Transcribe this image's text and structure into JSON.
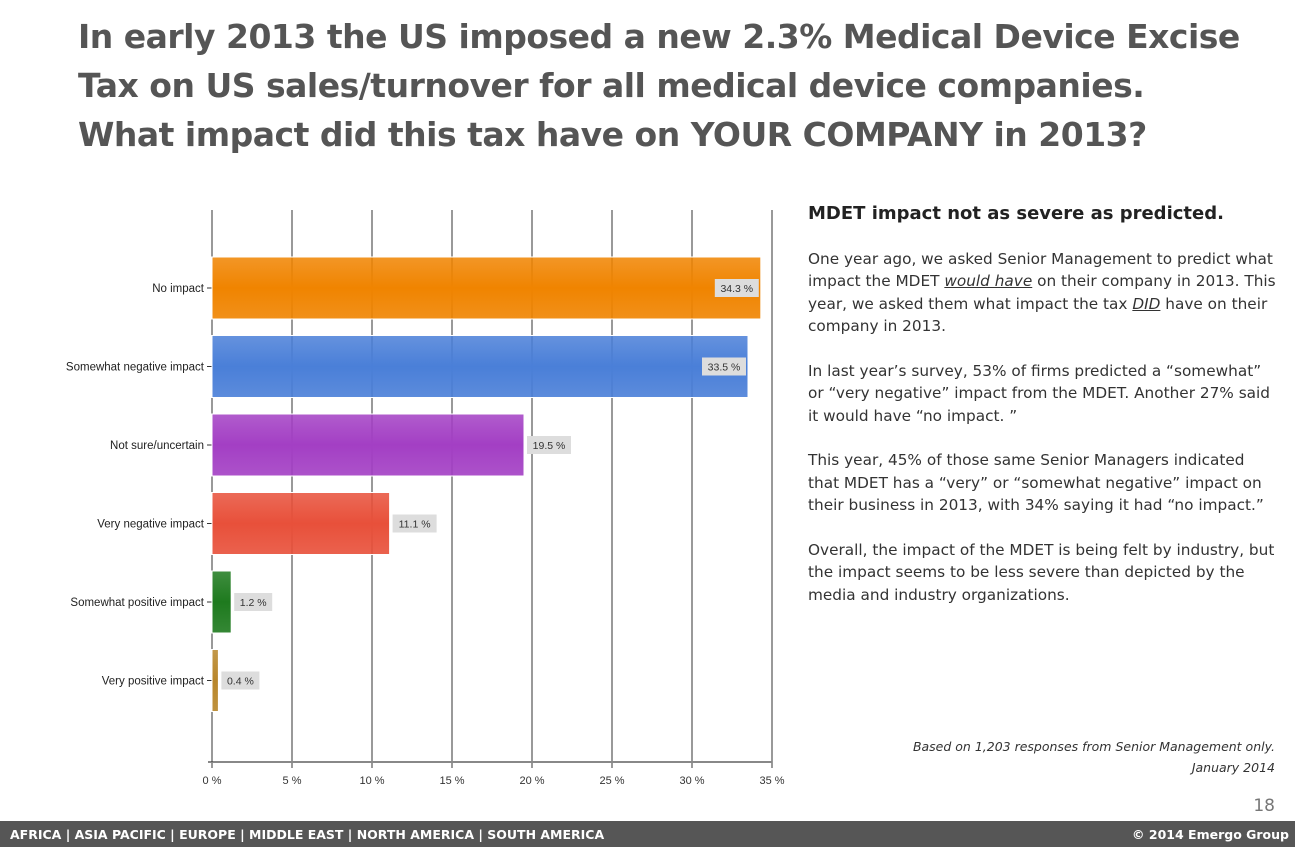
{
  "title": {
    "line1": "In early 2013 the US imposed a new 2.3% Medical Device Excise",
    "line2": "Tax on US sales/turnover for all medical device companies.",
    "line3": "What impact did this tax have on YOUR COMPANY in 2013?"
  },
  "panel": {
    "heading": "MDET impact not as severe as predicted.",
    "p1a": "One year ago, we asked Senior Management to predict what impact the MDET ",
    "p1b": "would have",
    "p1c": " on their company in 2013. This year, we asked them what impact the tax ",
    "p1d": "DID",
    "p1e": " have on their company in 2013.",
    "p2": "In last year’s survey, 53% of firms predicted a “somewhat” or “very negative” impact from the MDET. Another 27% said it would have “no impact. ”",
    "p3": "This year, 45% of those same Senior Managers indicated that MDET has a “very” or “somewhat negative” impact on their business in 2013, with 34% saying it had “no impact.”",
    "p4": "Overall, the impact of the MDET is being felt by industry, but the impact seems to be less severe than depicted by the media and industry organizations."
  },
  "note": {
    "line1": "Based on 1,203 responses from Senior Management only.",
    "line2": "January 2014"
  },
  "page_number": "18",
  "footer": {
    "regions": "AFRICA | ASIA PACIFIC | EUROPE | MIDDLE EAST | NORTH AMERICA | SOUTH AMERICA",
    "copyright": "© 2014  Emergo Group"
  },
  "chart_data": {
    "type": "bar",
    "orientation": "horizontal",
    "categories": [
      "No impact",
      "Somewhat negative impact",
      "Not sure/uncertain",
      "Very negative impact",
      "Somewhat positive impact",
      "Very positive impact"
    ],
    "values": [
      34.3,
      33.5,
      19.5,
      11.1,
      1.2,
      0.4
    ],
    "data_labels": [
      "34.3 %",
      "33.5 %",
      "19.5 %",
      "11.1 %",
      "1.2 %",
      "0.4 %"
    ],
    "colors": [
      "#f08400",
      "#4a7fd8",
      "#a33fc4",
      "#e8503a",
      "#1e7a1e",
      "#b8862a"
    ],
    "xlim": [
      0,
      35
    ],
    "xticks": [
      "0 %",
      "5 %",
      "10 %",
      "15 %",
      "20 %",
      "25 %",
      "30 %",
      "35 %"
    ],
    "grid": true
  }
}
